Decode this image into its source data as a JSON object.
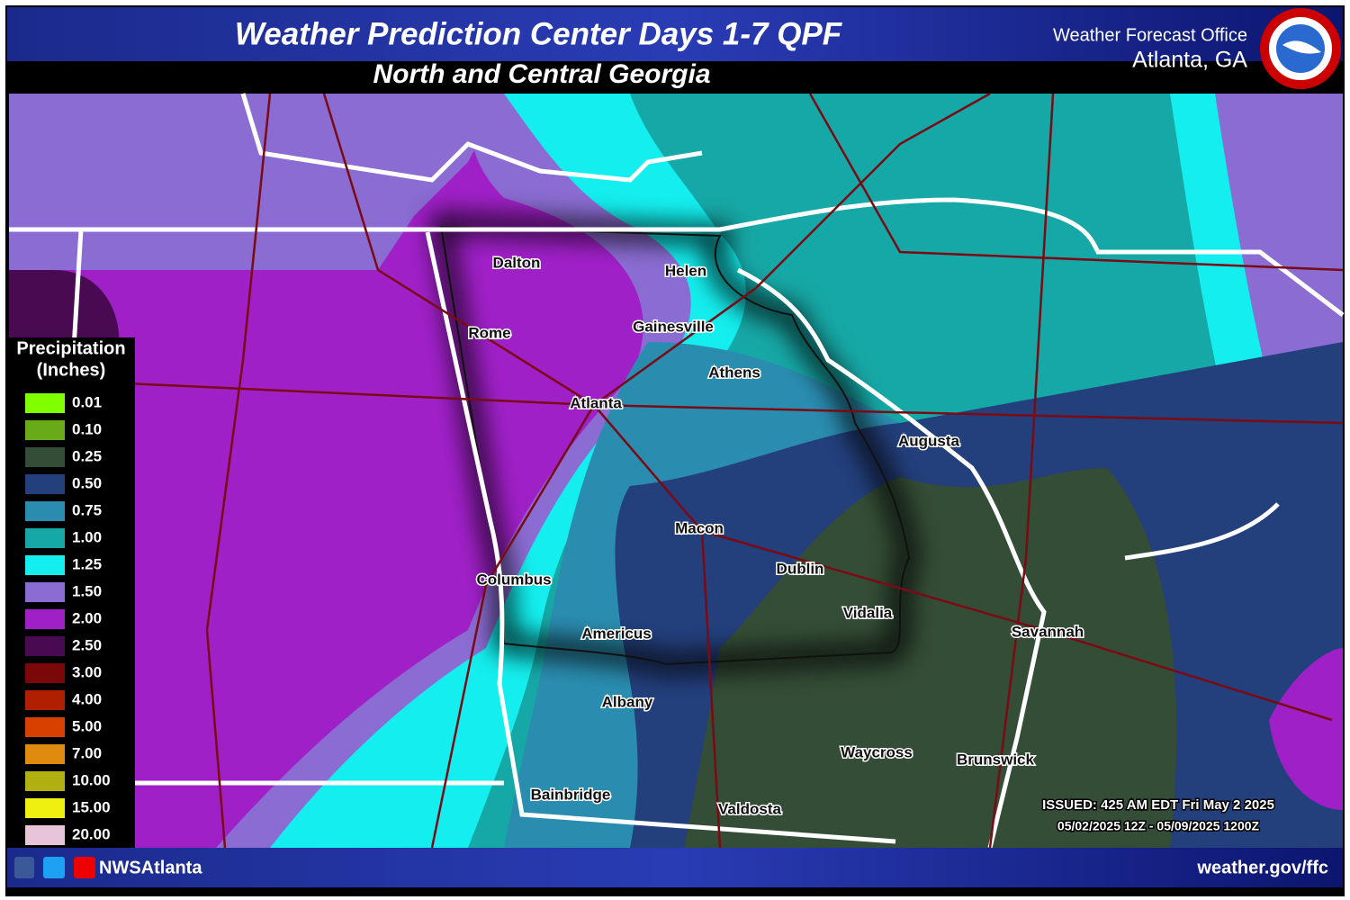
{
  "header": {
    "title": "Weather Prediction Center Days 1-7 QPF",
    "subtitle": "North and Central Georgia",
    "office": "Weather Forecast Office",
    "location": "Atlanta, GA"
  },
  "legend": {
    "title": "Precipitation",
    "unit": "(Inches)",
    "items": [
      {
        "label": "0.01",
        "color": "#80ff00"
      },
      {
        "label": "0.10",
        "color": "#68aa18"
      },
      {
        "label": "0.25",
        "color": "#344d36"
      },
      {
        "label": "0.50",
        "color": "#233f7c"
      },
      {
        "label": "0.75",
        "color": "#2a8db0"
      },
      {
        "label": "1.00",
        "color": "#16a8a6"
      },
      {
        "label": "1.25",
        "color": "#14eeee"
      },
      {
        "label": "1.50",
        "color": "#8a6cd2"
      },
      {
        "label": "2.00",
        "color": "#a020c8"
      },
      {
        "label": "2.50",
        "color": "#4a0a52"
      },
      {
        "label": "3.00",
        "color": "#7a0808"
      },
      {
        "label": "4.00",
        "color": "#b02000"
      },
      {
        "label": "5.00",
        "color": "#d84000"
      },
      {
        "label": "7.00",
        "color": "#e08a10"
      },
      {
        "label": "10.00",
        "color": "#b0b010"
      },
      {
        "label": "15.00",
        "color": "#f0f010"
      },
      {
        "label": "20.00",
        "color": "#e8c4d8"
      }
    ]
  },
  "cities": [
    "Dalton",
    "Helen",
    "Rome",
    "Gainesville",
    "Athens",
    "Atlanta",
    "Augusta",
    "Macon",
    "Columbus",
    "Dublin",
    "Vidalia",
    "Americus",
    "Savannah",
    "Albany",
    "Waycross",
    "Brunswick",
    "Bainbridge",
    "Valdosta"
  ],
  "issued": "ISSUED: 425 AM EDT Fri May 2 2025",
  "valid": "05/02/2025 12Z - 05/09/2025 1200Z",
  "footer": {
    "handle": "NWSAtlanta",
    "url": "weather.gov/ffc"
  }
}
